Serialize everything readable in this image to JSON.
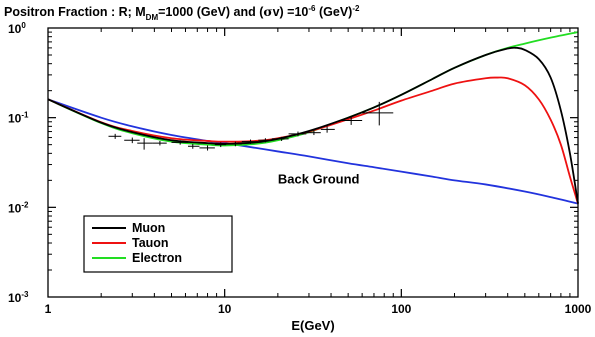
{
  "chart_data": {
    "type": "line",
    "title": {
      "prefix": "Positron Fraction : R; M",
      "mdm_sub": "DM",
      "mid": "=1000 (GeV) and  (",
      "sigma": "σ",
      "after_sigma": "v)  =10",
      "exp1": "-6",
      "unit": " (GeV)",
      "exp2": "-2"
    },
    "xlabel": "E(GeV)",
    "ylabel": "",
    "x_scale": "log",
    "y_scale": "log",
    "xlim": [
      1,
      1000
    ],
    "ylim": [
      0.001,
      1
    ],
    "x_ticks": [
      {
        "value": 1,
        "label": "1"
      },
      {
        "value": 10,
        "label": "10"
      },
      {
        "value": 100,
        "label": "100"
      },
      {
        "value": 1000,
        "label": "1000"
      }
    ],
    "y_ticks": [
      {
        "value": 1,
        "base": "10",
        "exp": "0"
      },
      {
        "value": 0.1,
        "base": "10",
        "exp": "-1"
      },
      {
        "value": 0.01,
        "base": "10",
        "exp": "-2"
      },
      {
        "value": 0.001,
        "base": "10",
        "exp": "-3"
      }
    ],
    "annotation": {
      "text": "Back Ground",
      "color": "#0000dd",
      "x": 20,
      "y": 0.0185
    },
    "legend_position": "bottom-left",
    "series": [
      {
        "name": "Muon",
        "color": "#000000",
        "x": [
          1,
          2,
          3,
          5,
          8,
          10,
          15,
          20,
          30,
          50,
          70,
          100,
          150,
          200,
          300,
          400,
          450,
          500,
          600,
          700,
          800,
          900,
          1000
        ],
        "y": [
          0.16,
          0.088,
          0.069,
          0.056,
          0.052,
          0.051,
          0.053,
          0.058,
          0.071,
          0.1,
          0.13,
          0.18,
          0.27,
          0.36,
          0.5,
          0.59,
          0.6,
          0.57,
          0.45,
          0.28,
          0.12,
          0.04,
          0.011
        ]
      },
      {
        "name": "Tauon",
        "color": "#ee1111",
        "x": [
          1,
          2,
          3,
          5,
          8,
          10,
          15,
          20,
          30,
          50,
          70,
          100,
          150,
          200,
          300,
          350,
          400,
          500,
          600,
          700,
          800,
          900,
          1000
        ],
        "y": [
          0.16,
          0.089,
          0.071,
          0.059,
          0.055,
          0.054,
          0.055,
          0.059,
          0.07,
          0.096,
          0.12,
          0.155,
          0.2,
          0.24,
          0.275,
          0.28,
          0.275,
          0.23,
          0.16,
          0.095,
          0.05,
          0.022,
          0.011
        ]
      },
      {
        "name": "Electron",
        "color": "#22dd22",
        "x": [
          1,
          2,
          3,
          5,
          8,
          10,
          15,
          20,
          30,
          50,
          70,
          100,
          150,
          200,
          300,
          400,
          500,
          700,
          1000
        ],
        "y": [
          0.16,
          0.087,
          0.067,
          0.054,
          0.05,
          0.049,
          0.051,
          0.056,
          0.069,
          0.1,
          0.13,
          0.18,
          0.27,
          0.36,
          0.5,
          0.6,
          0.67,
          0.78,
          0.9
        ]
      },
      {
        "name": "",
        "color": "#2233dd",
        "x": [
          1,
          2,
          3,
          5,
          8,
          10,
          15,
          20,
          30,
          50,
          70,
          100,
          150,
          200,
          300,
          500,
          700,
          1000
        ],
        "y": [
          0.16,
          0.1,
          0.08,
          0.064,
          0.055,
          0.052,
          0.046,
          0.042,
          0.037,
          0.031,
          0.028,
          0.025,
          0.022,
          0.02,
          0.018,
          0.015,
          0.013,
          0.011
        ]
      }
    ],
    "data_points": [
      {
        "x": 2.4,
        "y": 0.062,
        "xerr": [
          2.2,
          2.6
        ],
        "yerr": [
          0.058,
          0.066
        ]
      },
      {
        "x": 3.0,
        "y": 0.056,
        "xerr": [
          2.7,
          3.3
        ],
        "yerr": [
          0.052,
          0.06
        ]
      },
      {
        "x": 3.5,
        "y": 0.052,
        "xerr": [
          3.2,
          3.9
        ],
        "yerr": [
          0.044,
          0.059
        ]
      },
      {
        "x": 4.3,
        "y": 0.052,
        "xerr": [
          3.9,
          4.7
        ],
        "yerr": [
          0.049,
          0.055
        ]
      },
      {
        "x": 5.6,
        "y": 0.053,
        "xerr": [
          5.0,
          6.2
        ],
        "yerr": [
          0.05,
          0.056
        ]
      },
      {
        "x": 6.6,
        "y": 0.048,
        "xerr": [
          6.2,
          7.2
        ],
        "yerr": [
          0.045,
          0.051
        ]
      },
      {
        "x": 8.0,
        "y": 0.046,
        "xerr": [
          7.2,
          8.8
        ],
        "yerr": [
          0.043,
          0.049
        ]
      },
      {
        "x": 9.5,
        "y": 0.05,
        "xerr": [
          8.8,
          10.2
        ],
        "yerr": [
          0.047,
          0.053
        ]
      },
      {
        "x": 11.5,
        "y": 0.051,
        "xerr": [
          10.2,
          12.5
        ],
        "yerr": [
          0.048,
          0.054
        ]
      },
      {
        "x": 14,
        "y": 0.054,
        "xerr": [
          12.5,
          15.5
        ],
        "yerr": [
          0.051,
          0.057
        ]
      },
      {
        "x": 17,
        "y": 0.056,
        "xerr": [
          15.5,
          18.5
        ],
        "yerr": [
          0.053,
          0.059
        ]
      },
      {
        "x": 21,
        "y": 0.058,
        "xerr": [
          18.5,
          23
        ],
        "yerr": [
          0.055,
          0.061
        ]
      },
      {
        "x": 26,
        "y": 0.066,
        "xerr": [
          23,
          29
        ],
        "yerr": [
          0.062,
          0.07
        ]
      },
      {
        "x": 32,
        "y": 0.068,
        "xerr": [
          29,
          35
        ],
        "yerr": [
          0.064,
          0.072
        ]
      },
      {
        "x": 38,
        "y": 0.074,
        "xerr": [
          35,
          42
        ],
        "yerr": [
          0.068,
          0.08
        ]
      },
      {
        "x": 52,
        "y": 0.093,
        "xerr": [
          45,
          60
        ],
        "yerr": [
          0.083,
          0.103
        ]
      },
      {
        "x": 75,
        "y": 0.113,
        "xerr": [
          60,
          90
        ],
        "yerr": [
          0.082,
          0.15
        ]
      }
    ]
  }
}
